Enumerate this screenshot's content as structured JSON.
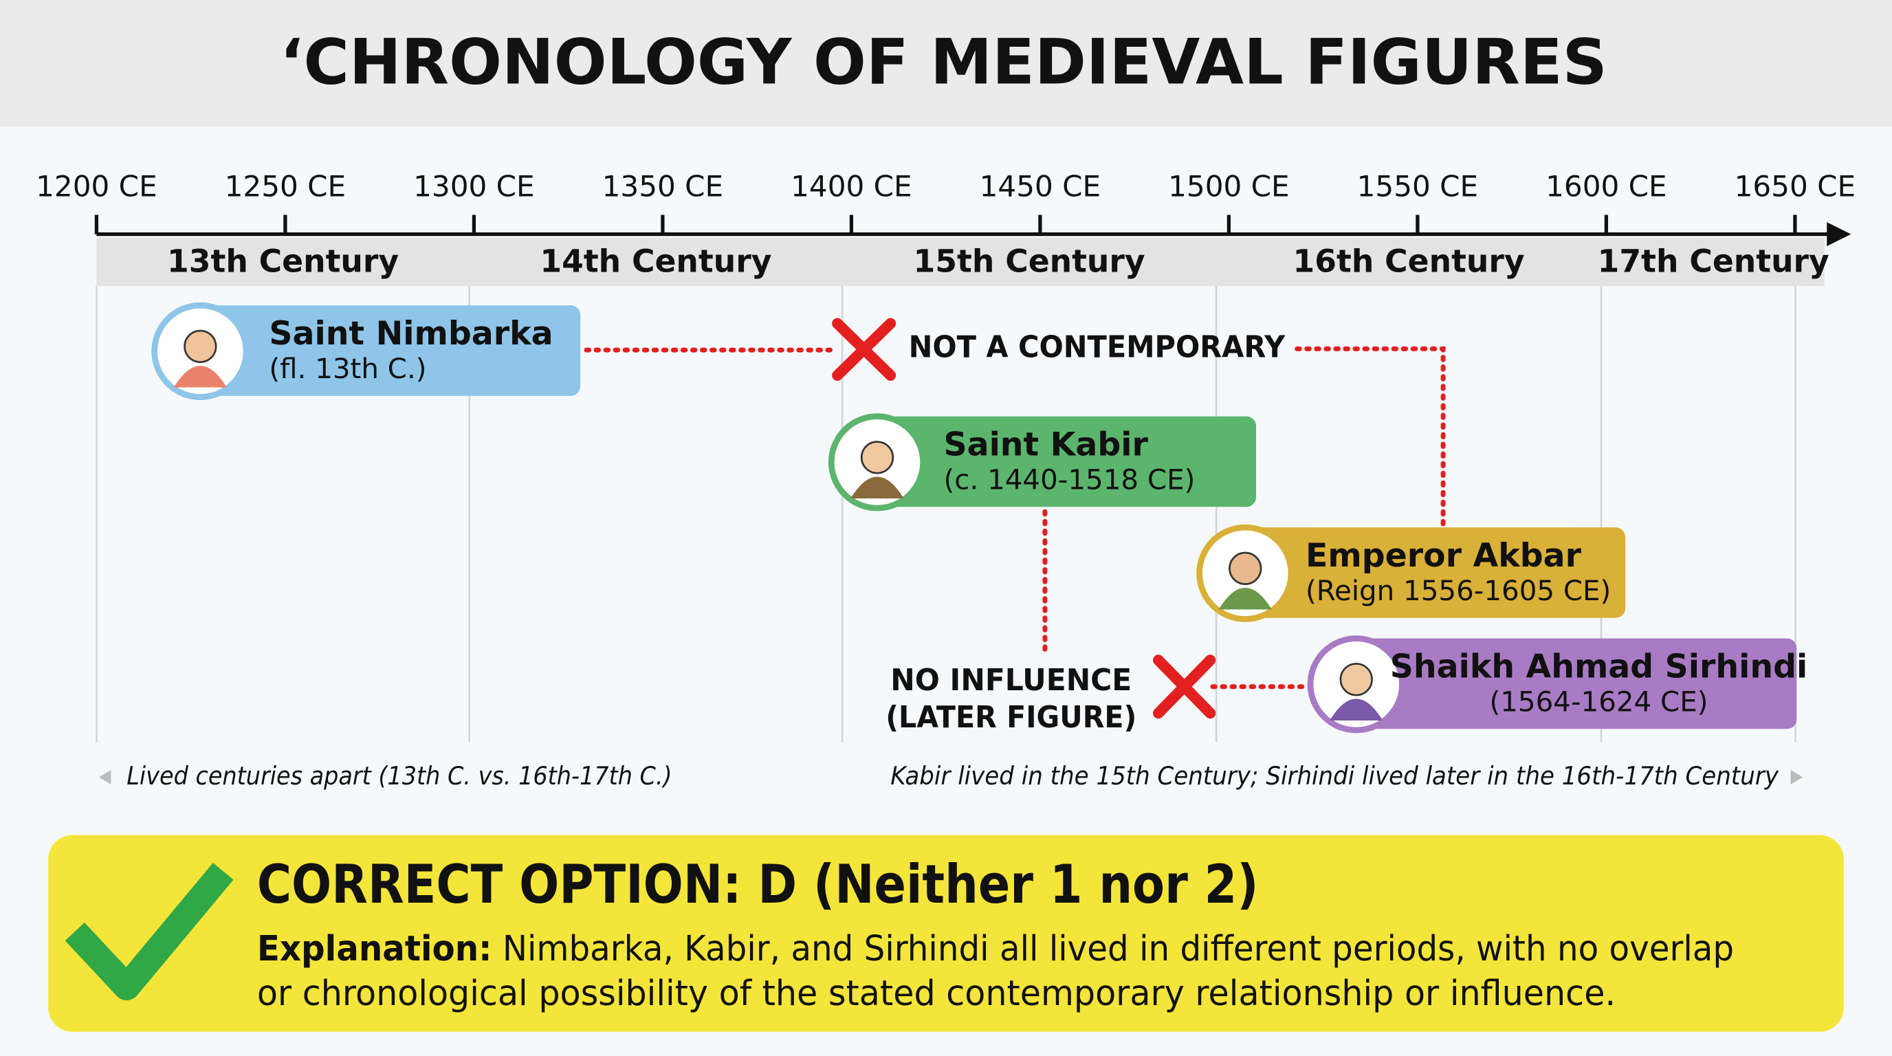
{
  "header": {
    "title": "‘CHRONOLOGY OF MEDIEVAL FIGURES"
  },
  "timeline": {
    "ticks": [
      "1200 CE",
      "1250 CE",
      "1300 CE",
      "1350 CE",
      "1400 CE",
      "1450 CE",
      "1500 CE",
      "1550 CE",
      "1600 CE",
      "1650 CE"
    ],
    "centuries": [
      "13th Century",
      "14th Century",
      "15th Century",
      "16th Century",
      "17th Century"
    ]
  },
  "figures": [
    {
      "name": "Saint Nimbarka",
      "dates": "(fl. 13th C.)"
    },
    {
      "name": "Saint Kabir",
      "dates": "(c. 1440-1518 CE)"
    },
    {
      "name": "Emperor Akbar",
      "dates": "(Reign 1556-1605 CE)"
    },
    {
      "name": "Shaikh Ahmad Sirhindi",
      "dates": "(1564-1624 CE)"
    }
  ],
  "annotations": {
    "not_contemporary": "NOT A CONTEMPORARY",
    "no_influence": [
      "NO INFLUENCE",
      "(LATER FIGURE)"
    ]
  },
  "notes": [
    "Lived centuries apart (13th C. vs. 16th-17th C.)",
    "Kabir lived in the 15th Century; Sirhindi lived later in the 16th-17th Century"
  ],
  "answer": {
    "heading": "CORRECT OPTION: D (Neither 1 nor 2)",
    "label": "Explanation:",
    "lines": [
      "Nimbarka, Kabir, and Sirhindi all lived in different periods, with no overlap",
      "or chronological possibility of the stated contemporary relationship or influence."
    ]
  }
}
